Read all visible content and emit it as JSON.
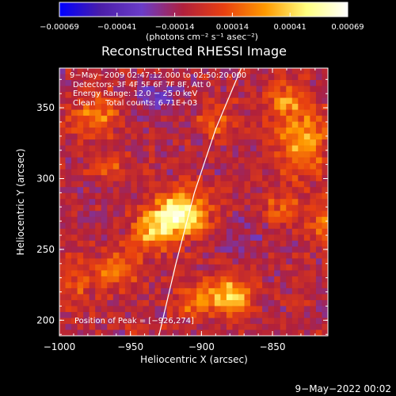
{
  "chart_data": {
    "type": "heatmap",
    "title": "Reconstructed RHESSI Image",
    "xlabel": "Heliocentric X (arcsec)",
    "ylabel": "Heliocentric Y (arcsec)",
    "xlim": [
      -1000,
      -811
    ],
    "ylim": [
      189,
      378
    ],
    "x_ticks": [
      {
        "value": -1000,
        "label": "−1000"
      },
      {
        "value": -950,
        "label": "−950"
      },
      {
        "value": -900,
        "label": "−900"
      },
      {
        "value": -850,
        "label": "−850"
      }
    ],
    "y_ticks": [
      {
        "value": 200,
        "label": "200"
      },
      {
        "value": 250,
        "label": "250"
      },
      {
        "value": 300,
        "label": "300"
      },
      {
        "value": 350,
        "label": "350"
      }
    ],
    "colorbar": {
      "range": [
        -0.00069,
        0.00069
      ],
      "tick_labels": [
        "−0.00069",
        "−0.00041",
        "−0.00014",
        "0.00014",
        "0.00041",
        "0.00069"
      ],
      "unit_text": "(photons cm⁻² s⁻¹ asec⁻²)",
      "colors": [
        "#0000ff",
        "#4b1ea8",
        "#6a3cc8",
        "#b0203c",
        "#e84010",
        "#ff9a00",
        "#ffff80",
        "#ffffff"
      ]
    },
    "annotations": [
      "9−May−2009 02:47:12.000 to 02:50:20.000",
      "Detectors: 3F 4F 5F 6F 7F 8F, Att 0",
      "Energy Range: 12.0 − 25.0 keV",
      "Clean    Total counts: 6.71E+03"
    ],
    "peak_label": "Position of Peak = [−926,274]",
    "peak": [
      -926,
      274
    ],
    "limb_curve": [
      [
        -930,
        189
      ],
      [
        -918,
        240
      ],
      [
        -905,
        290
      ],
      [
        -890,
        335
      ],
      [
        -872,
        378
      ]
    ],
    "grid_cols": 45,
    "grid_rows": 45,
    "sources": [
      {
        "x": -915,
        "y": 275,
        "amp": 0.00069,
        "sx": 13,
        "sy": 11
      },
      {
        "x": -935,
        "y": 262,
        "amp": 0.0004,
        "sx": 10,
        "sy": 9
      },
      {
        "x": -880,
        "y": 218,
        "amp": 0.00048,
        "sx": 12,
        "sy": 9
      },
      {
        "x": -905,
        "y": 212,
        "amp": 0.00026,
        "sx": 9,
        "sy": 7
      },
      {
        "x": -960,
        "y": 235,
        "amp": 0.0003,
        "sx": 11,
        "sy": 9
      },
      {
        "x": -990,
        "y": 225,
        "amp": 0.00018,
        "sx": 8,
        "sy": 12
      },
      {
        "x": -975,
        "y": 345,
        "amp": 0.00032,
        "sx": 12,
        "sy": 10
      },
      {
        "x": -965,
        "y": 310,
        "amp": 0.00024,
        "sx": 7,
        "sy": 7
      },
      {
        "x": -830,
        "y": 325,
        "amp": 0.0004,
        "sx": 12,
        "sy": 15
      },
      {
        "x": -840,
        "y": 355,
        "amp": 0.0003,
        "sx": 10,
        "sy": 9
      },
      {
        "x": -815,
        "y": 270,
        "amp": 0.0003,
        "sx": 7,
        "sy": 10
      },
      {
        "x": -845,
        "y": 280,
        "amp": 0.00022,
        "sx": 9,
        "sy": 8
      },
      {
        "x": -890,
        "y": 340,
        "amp": 0.0002,
        "sx": 10,
        "sy": 8
      },
      {
        "x": -930,
        "y": 355,
        "amp": -0.0002,
        "sx": 14,
        "sy": 10
      },
      {
        "x": -875,
        "y": 255,
        "amp": -0.00014,
        "sx": 10,
        "sy": 10
      }
    ]
  },
  "footer": {
    "timestamp": "9−May−2022 00:02"
  }
}
